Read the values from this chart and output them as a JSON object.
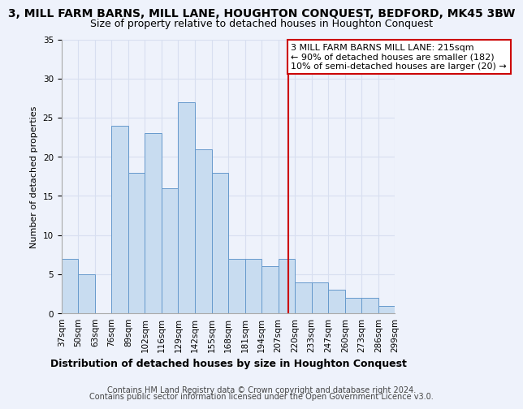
{
  "title": "3, MILL FARM BARNS, MILL LANE, HOUGHTON CONQUEST, BEDFORD, MK45 3BW",
  "subtitle": "Size of property relative to detached houses in Houghton Conquest",
  "xlabel": "Distribution of detached houses by size in Houghton Conquest",
  "ylabel": "Number of detached properties",
  "bin_labels": [
    "37sqm",
    "50sqm",
    "63sqm",
    "76sqm",
    "89sqm",
    "102sqm",
    "116sqm",
    "129sqm",
    "142sqm",
    "155sqm",
    "168sqm",
    "181sqm",
    "194sqm",
    "207sqm",
    "220sqm",
    "233sqm",
    "247sqm",
    "260sqm",
    "273sqm",
    "286sqm",
    "299sqm"
  ],
  "bar_values": [
    7,
    5,
    0,
    24,
    18,
    23,
    16,
    27,
    21,
    18,
    7,
    7,
    6,
    7,
    4,
    4,
    3,
    2,
    2,
    1
  ],
  "bar_color": "#c8dcf0",
  "bar_edge_color": "#6699cc",
  "vline_color": "#cc0000",
  "ylim": [
    0,
    35
  ],
  "yticks": [
    0,
    5,
    10,
    15,
    20,
    25,
    30,
    35
  ],
  "annotation_line1": "3 MILL FARM BARNS MILL LANE: 215sqm",
  "annotation_line2": "← 90% of detached houses are smaller (182)",
  "annotation_line3": "10% of semi-detached houses are larger (20) →",
  "annotation_box_edge": "#cc0000",
  "footer1": "Contains HM Land Registry data © Crown copyright and database right 2024.",
  "footer2": "Contains public sector information licensed under the Open Government Licence v3.0.",
  "background_color": "#eef2fb",
  "grid_color": "#d8dff0",
  "title_fontsize": 10,
  "subtitle_fontsize": 9,
  "xlabel_fontsize": 9,
  "ylabel_fontsize": 8,
  "tick_fontsize": 7.5,
  "annotation_fontsize": 8,
  "footer_fontsize": 7
}
